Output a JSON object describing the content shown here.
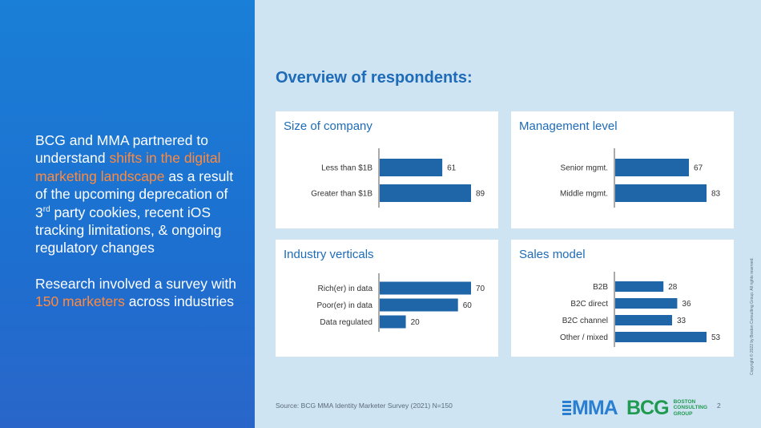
{
  "left": {
    "p1_a": "BCG and MMA partnered to understand ",
    "p1_hl": "shifts in the digital marketing landscape",
    "p1_b": " as a result of the upcoming deprecation of 3",
    "p1_sup": "rd",
    "p1_c": " party cookies, recent iOS tracking limitations, & ongoing regulatory changes",
    "p2_a": "Research involved a survey with ",
    "p2_hl": "150 marketers",
    "p2_b": " across industries"
  },
  "title": "Overview of respondents:",
  "colors": {
    "bar": "#1f66a8",
    "accent": "#ff8a3d",
    "title": "#1e6bb8"
  },
  "chart_data": [
    {
      "type": "bar",
      "orientation": "horizontal",
      "title": "Size of company",
      "categories": [
        "Less than $1B",
        "Greater than $1B"
      ],
      "values": [
        61,
        89
      ],
      "xlim": [
        0,
        89
      ]
    },
    {
      "type": "bar",
      "orientation": "horizontal",
      "title": "Management level",
      "categories": [
        "Senior mgmt.",
        "Middle mgmt."
      ],
      "values": [
        67,
        83
      ],
      "xlim": [
        0,
        83
      ]
    },
    {
      "type": "bar",
      "orientation": "horizontal",
      "title": "Industry verticals",
      "categories": [
        "Rich(er) in data",
        "Poor(er) in data",
        "Data regulated"
      ],
      "values": [
        70,
        60,
        20
      ],
      "xlim": [
        0,
        70
      ]
    },
    {
      "type": "bar",
      "orientation": "horizontal",
      "title": "Sales model",
      "categories": [
        "B2B",
        "B2C direct",
        "B2C channel",
        "Other / mixed"
      ],
      "values": [
        28,
        36,
        33,
        53
      ],
      "xlim": [
        0,
        53
      ]
    }
  ],
  "footer": {
    "source": "Source: BCG MMA Identity Marketer Survey (2021) N=150",
    "page": "2",
    "copyright": "Copyright © 2022 by Boston Consulting Group. All rights reserved.",
    "mma_logo": "MMA",
    "bcg_logo": "BCG",
    "bcg_sub": [
      "BOSTON",
      "CONSULTING",
      "GROUP"
    ]
  }
}
